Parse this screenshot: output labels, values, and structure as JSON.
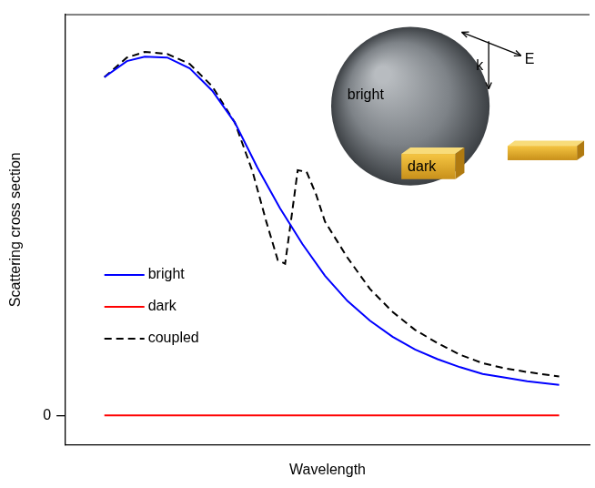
{
  "chart_data": {
    "type": "line",
    "x_label": "Wavelength",
    "y_label": "Scattering cross section",
    "xlim": [
      0,
      100
    ],
    "ylim": [
      -7.4,
      100
    ],
    "yticks": [
      0
    ],
    "tick_labels": "y",
    "grid": false,
    "legend": "lower left",
    "series": [
      {
        "name": "bright",
        "color": "#0000ff",
        "line_style": "solid",
        "x": [
          7.4,
          11.7,
          15.1,
          19.4,
          23.7,
          28.0,
          32.3,
          36.6,
          40.9,
          45.2,
          49.5,
          53.8,
          58.1,
          62.4,
          66.7,
          71.0,
          75.3,
          79.6,
          83.9,
          88.1,
          94.2
        ],
        "values": [
          84.3,
          88.3,
          89.4,
          89.2,
          86.5,
          80.9,
          73.0,
          61.8,
          51.7,
          42.7,
          34.8,
          28.5,
          23.6,
          19.6,
          16.4,
          14.0,
          12.0,
          10.3,
          9.4,
          8.5,
          7.6
        ]
      },
      {
        "name": "dark",
        "color": "#ff0000",
        "line_style": "solid",
        "x": [
          7.4,
          94.2
        ],
        "values": [
          0,
          0
        ]
      },
      {
        "name": "coupled",
        "color": "#000000",
        "line_style": "dashed",
        "x": [
          7.4,
          11.7,
          15.1,
          19.4,
          23.7,
          28.0,
          32.3,
          35.7,
          38.3,
          40.5,
          41.9,
          43.0,
          44.3,
          46.0,
          47.8,
          49.5,
          53.8,
          58.1,
          62.4,
          66.7,
          71.0,
          75.3,
          79.6,
          83.9,
          88.1,
          94.2
        ],
        "values": [
          84.3,
          89.2,
          90.6,
          90.1,
          87.6,
          82.0,
          73.0,
          60.7,
          48.3,
          38.7,
          37.8,
          48.3,
          61.1,
          60.7,
          55.1,
          48.3,
          39.3,
          31.5,
          25.8,
          21.3,
          18.0,
          15.1,
          13.0,
          11.7,
          10.8,
          9.7
        ]
      }
    ],
    "inset": {
      "sphere": "bright",
      "rod": "dark",
      "k": "k",
      "E": "E"
    }
  }
}
